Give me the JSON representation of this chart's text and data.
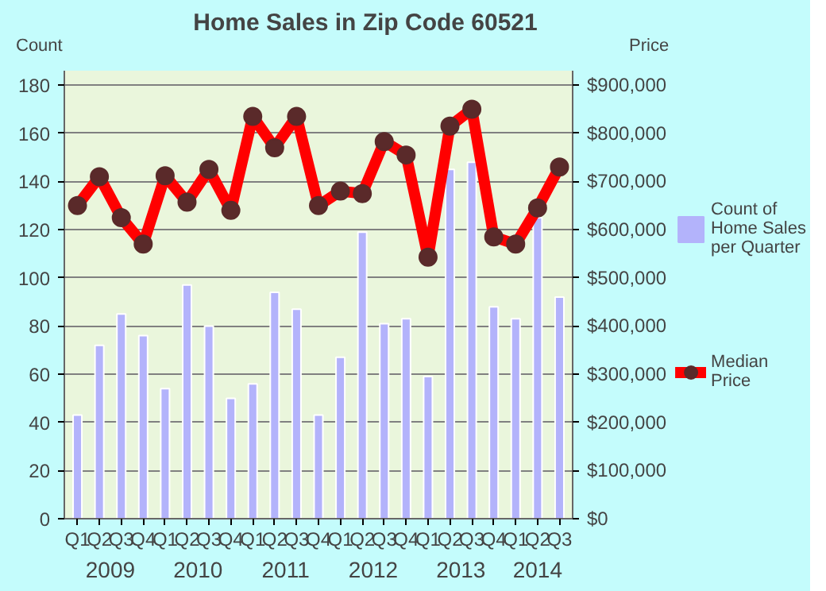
{
  "chart_data": {
    "type": "bar",
    "title": "Home Sales in Zip Code 60521",
    "ylabel": "Count",
    "y2label": "Price",
    "categories": [
      "Q1",
      "Q2",
      "Q3",
      "Q4",
      "Q1",
      "Q2",
      "Q3",
      "Q4",
      "Q1",
      "Q2",
      "Q3",
      "Q4",
      "Q1",
      "Q2",
      "Q3",
      "Q4",
      "Q1",
      "Q2",
      "Q3",
      "Q4",
      "Q1",
      "Q2",
      "Q3"
    ],
    "annotations": [
      "2009",
      "2010",
      "2011",
      "2012",
      "2013",
      "2014"
    ],
    "series": [
      {
        "name": "Count of Home Sales per Quarter",
        "color": "#b3b3fb",
        "values": [
          43,
          72,
          85,
          76,
          54,
          97,
          80,
          50,
          56,
          94,
          87,
          43,
          67,
          119,
          81,
          83,
          59,
          145,
          148,
          88,
          83,
          125,
          92
        ]
      },
      {
        "name": "Median Price",
        "type": "line",
        "axis": "y2",
        "color": "#ff0000",
        "values": [
          650000,
          710000,
          625000,
          570000,
          712000,
          657000,
          725000,
          640000,
          835000,
          770000,
          835000,
          650000,
          680000,
          675000,
          783000,
          755000,
          543000,
          815000,
          850000,
          585000,
          570000,
          645000,
          730000
        ]
      }
    ],
    "ylim": [
      0,
      186
    ],
    "yticks": [
      0,
      20,
      40,
      60,
      80,
      100,
      120,
      140,
      160,
      180
    ],
    "y2lim": [
      0,
      930000
    ],
    "y2ticks": [
      {
        "value": 0,
        "label": "$0"
      },
      {
        "value": 100000,
        "label": "$100,000"
      },
      {
        "value": 200000,
        "label": "$200,000"
      },
      {
        "value": 300000,
        "label": "$300,000"
      },
      {
        "value": 400000,
        "label": "$400,000"
      },
      {
        "value": 500000,
        "label": "$500,000"
      },
      {
        "value": 600000,
        "label": "$600,000"
      },
      {
        "value": 700000,
        "label": "$700,000"
      },
      {
        "value": 800000,
        "label": "$800,000"
      },
      {
        "value": 900000,
        "label": "$900,000"
      }
    ],
    "grid": "y",
    "legend": "right",
    "marker": "circle"
  }
}
